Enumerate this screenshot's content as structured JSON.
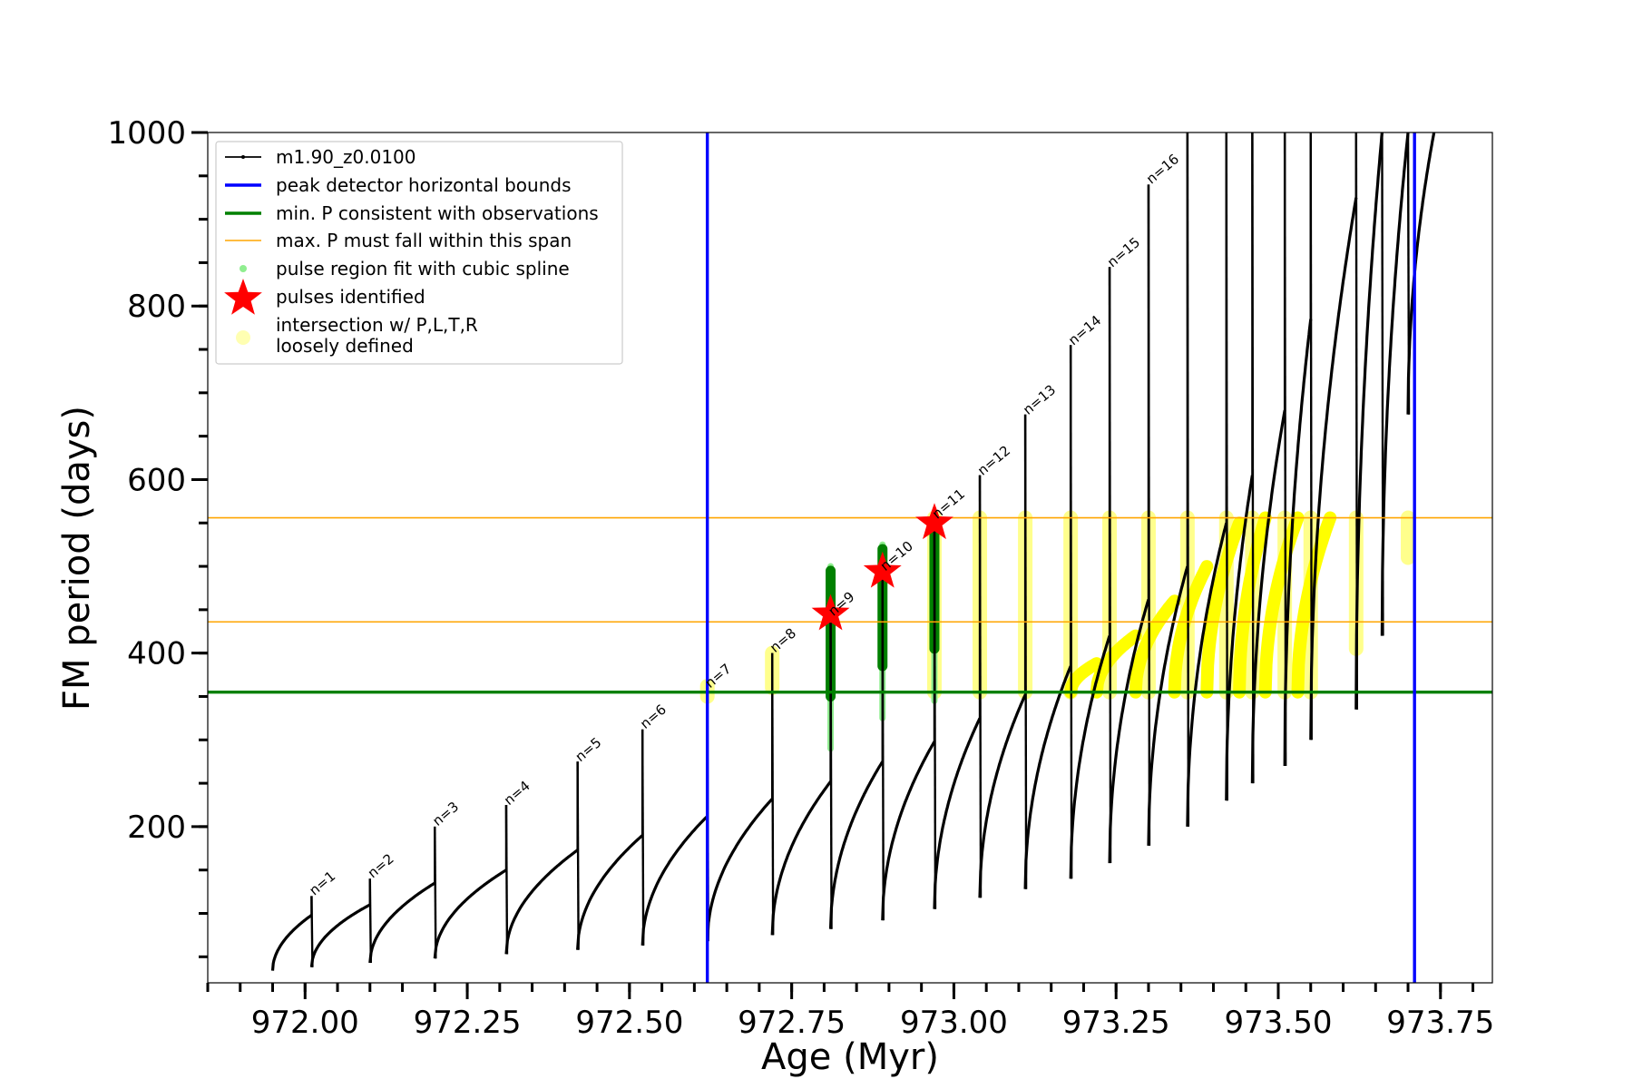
{
  "chart_data": {
    "type": "line",
    "xlabel": "Age (Myr)",
    "ylabel": "FM period (days)",
    "xlim": [
      971.85,
      973.83
    ],
    "ylim": [
      20,
      1000
    ],
    "x_ticks": [
      972.0,
      972.25,
      972.5,
      972.75,
      973.0,
      973.25,
      973.5,
      973.75
    ],
    "x_tick_labels": [
      "972.00",
      "972.25",
      "972.50",
      "972.75",
      "973.00",
      "973.25",
      "973.50",
      "973.75"
    ],
    "y_ticks": [
      200,
      400,
      600,
      800,
      1000
    ],
    "y_tick_labels": [
      "200",
      "400",
      "600",
      "800",
      "1000"
    ],
    "grid": false,
    "legend_position": "top-left",
    "legend": [
      {
        "label": "m1.90_z0.0100",
        "kind": "line-dot",
        "color": "#000000"
      },
      {
        "label": "peak detector horizontal bounds",
        "kind": "line",
        "color": "#0000ff"
      },
      {
        "label": "min. P consistent with observations",
        "kind": "line",
        "color": "#008000"
      },
      {
        "label": "max. P must fall within this span",
        "kind": "thin-line",
        "color": "#ffa500"
      },
      {
        "label": "pulse region fit with cubic spline",
        "kind": "dot",
        "color": "#90ee90"
      },
      {
        "label": "pulses identified",
        "kind": "star",
        "color": "#ff0000"
      },
      {
        "label": "intersection w/ P,L,T,R",
        "label2": "loosely defined",
        "kind": "circle",
        "color": "#ffffaa"
      }
    ],
    "vertical_bounds": [
      972.62,
      973.71
    ],
    "min_period_line": 355,
    "max_period_span": [
      436,
      556
    ],
    "series": [
      {
        "name": "m1.90_z0.0100",
        "pulses": [
          {
            "start": 971.95,
            "trough": 34,
            "end": 972.01,
            "ebase": 98,
            "peak": 120
          },
          {
            "start": 972.01,
            "trough": 38,
            "end": 972.1,
            "ebase": 110,
            "peak": 140
          },
          {
            "start": 972.1,
            "trough": 43,
            "end": 972.2,
            "ebase": 135,
            "peak": 200
          },
          {
            "start": 972.2,
            "trough": 48,
            "end": 972.31,
            "ebase": 150,
            "peak": 225
          },
          {
            "start": 972.31,
            "trough": 53,
            "end": 972.42,
            "ebase": 173,
            "peak": 275
          },
          {
            "start": 972.42,
            "trough": 58,
            "end": 972.52,
            "ebase": 190,
            "peak": 312
          },
          {
            "start": 972.52,
            "trough": 63,
            "end": 972.62,
            "ebase": 212,
            "peak": 360
          },
          {
            "start": 972.62,
            "trough": 68,
            "end": 972.72,
            "ebase": 232,
            "peak": 400
          },
          {
            "start": 972.72,
            "trough": 75,
            "end": 972.81,
            "ebase": 252,
            "peak": 445
          },
          {
            "start": 972.81,
            "trough": 82,
            "end": 972.89,
            "ebase": 275,
            "peak": 495
          },
          {
            "start": 972.89,
            "trough": 92,
            "end": 972.97,
            "ebase": 298,
            "peak": 555
          },
          {
            "start": 972.97,
            "trough": 105,
            "end": 973.04,
            "ebase": 325,
            "peak": 605
          },
          {
            "start": 973.04,
            "trough": 118,
            "end": 973.11,
            "ebase": 352,
            "peak": 675
          },
          {
            "start": 973.11,
            "trough": 128,
            "end": 973.18,
            "ebase": 385,
            "peak": 755
          },
          {
            "start": 973.18,
            "trough": 140,
            "end": 973.24,
            "ebase": 420,
            "peak": 845
          },
          {
            "start": 973.24,
            "trough": 158,
            "end": 973.3,
            "ebase": 462,
            "peak": 940
          },
          {
            "start": 973.3,
            "trough": 178,
            "end": 973.36,
            "ebase": 500,
            "peak": 1000
          },
          {
            "start": 973.36,
            "trough": 200,
            "end": 973.42,
            "ebase": 550,
            "peak": 1000
          },
          {
            "start": 973.42,
            "trough": 230,
            "end": 973.46,
            "ebase": 605,
            "peak": 1000
          },
          {
            "start": 973.46,
            "trough": 250,
            "end": 973.51,
            "ebase": 680,
            "peak": 1000
          },
          {
            "start": 973.51,
            "trough": 270,
            "end": 973.55,
            "ebase": 785,
            "peak": 1000
          },
          {
            "start": 973.55,
            "trough": 300,
            "end": 973.62,
            "ebase": 925,
            "peak": 1000
          },
          {
            "start": 973.62,
            "trough": 335,
            "end": 973.66,
            "ebase": 1000,
            "peak": 1000
          },
          {
            "start": 973.66,
            "trough": 420,
            "end": 973.7,
            "ebase": 1000,
            "peak": 1000
          },
          {
            "start": 973.7,
            "trough": 675,
            "end": 973.74,
            "ebase": 1000,
            "peak": 1000
          }
        ]
      }
    ],
    "pulse_labels": [
      {
        "text": "n=1",
        "x": 972.01,
        "y": 118
      },
      {
        "text": "n=2",
        "x": 972.1,
        "y": 138
      },
      {
        "text": "n=3",
        "x": 972.2,
        "y": 198
      },
      {
        "text": "n=4",
        "x": 972.31,
        "y": 222
      },
      {
        "text": "n=5",
        "x": 972.42,
        "y": 272
      },
      {
        "text": "n=6",
        "x": 972.52,
        "y": 310
      },
      {
        "text": "n=7",
        "x": 972.62,
        "y": 357
      },
      {
        "text": "n=8",
        "x": 972.72,
        "y": 398
      },
      {
        "text": "n=9",
        "x": 972.81,
        "y": 440
      },
      {
        "text": "n=10",
        "x": 972.89,
        "y": 492
      },
      {
        "text": "n=11",
        "x": 972.97,
        "y": 552
      },
      {
        "text": "n=12",
        "x": 973.04,
        "y": 602
      },
      {
        "text": "n=13",
        "x": 973.11,
        "y": 672
      },
      {
        "text": "n=14",
        "x": 973.18,
        "y": 752
      },
      {
        "text": "n=15",
        "x": 973.24,
        "y": 842
      },
      {
        "text": "n=16",
        "x": 973.3,
        "y": 938
      }
    ],
    "pulses_identified": [
      {
        "x": 972.81,
        "y": 445
      },
      {
        "x": 972.89,
        "y": 494
      },
      {
        "x": 972.97,
        "y": 550
      }
    ],
    "spline_regions": [
      {
        "x": 972.81,
        "ylow": 290,
        "yhigh": 500
      },
      {
        "x": 972.89,
        "ylow": 325,
        "yhigh": 525
      },
      {
        "x": 972.97,
        "ylow": 345,
        "yhigh": 555
      }
    ],
    "yellow_bars": [
      {
        "x": 972.62,
        "ylow": 350,
        "yhigh": 362
      },
      {
        "x": 972.72,
        "ylow": 360,
        "yhigh": 400
      },
      {
        "x": 972.97,
        "ylow": 355,
        "yhigh": 556
      },
      {
        "x": 973.04,
        "ylow": 355,
        "yhigh": 556
      },
      {
        "x": 973.11,
        "ylow": 355,
        "yhigh": 556
      },
      {
        "x": 973.18,
        "ylow": 355,
        "yhigh": 556
      },
      {
        "x": 973.24,
        "ylow": 355,
        "yhigh": 556
      },
      {
        "x": 973.3,
        "ylow": 355,
        "yhigh": 556
      },
      {
        "x": 973.36,
        "ylow": 355,
        "yhigh": 556
      },
      {
        "x": 973.42,
        "ylow": 355,
        "yhigh": 556
      },
      {
        "x": 973.46,
        "ylow": 355,
        "yhigh": 556
      },
      {
        "x": 973.51,
        "ylow": 355,
        "yhigh": 556
      },
      {
        "x": 973.55,
        "ylow": 355,
        "yhigh": 556
      },
      {
        "x": 973.62,
        "ylow": 405,
        "yhigh": 556
      },
      {
        "x": 973.7,
        "ylow": 510,
        "yhigh": 556
      }
    ],
    "yellow_arcs": [
      {
        "start": 973.18,
        "end": 973.22,
        "low": 355,
        "high": 388
      },
      {
        "start": 973.22,
        "end": 973.28,
        "low": 355,
        "high": 420
      },
      {
        "start": 973.28,
        "end": 973.34,
        "low": 355,
        "high": 460
      },
      {
        "start": 973.34,
        "end": 973.39,
        "low": 355,
        "high": 500
      },
      {
        "start": 973.39,
        "end": 973.44,
        "low": 355,
        "high": 550
      },
      {
        "start": 973.44,
        "end": 973.48,
        "low": 355,
        "high": 556
      },
      {
        "start": 973.48,
        "end": 973.53,
        "low": 355,
        "high": 556
      },
      {
        "start": 973.53,
        "end": 973.58,
        "low": 355,
        "high": 556
      }
    ]
  }
}
